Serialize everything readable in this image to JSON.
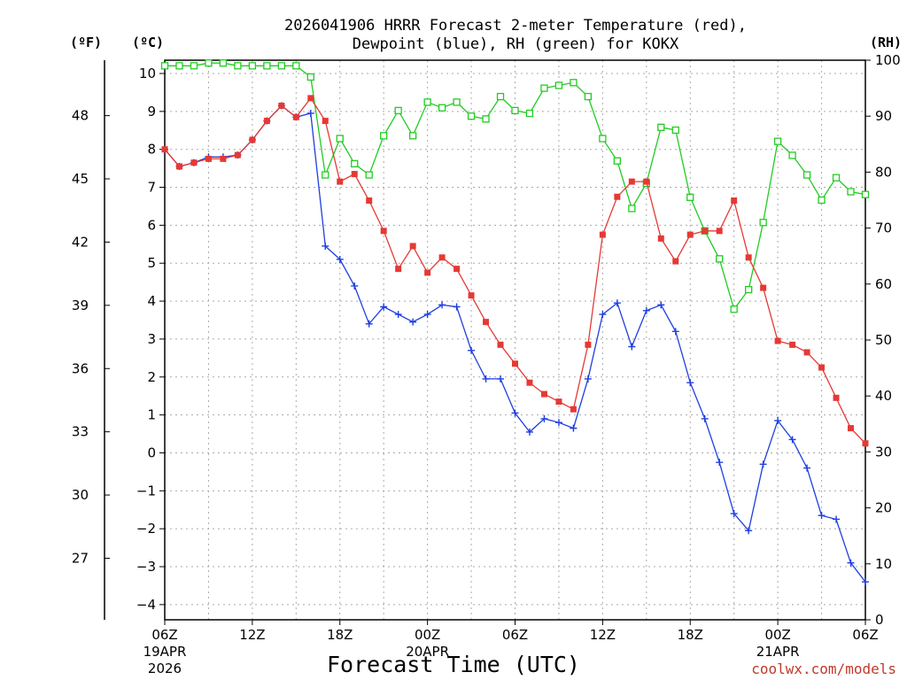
{
  "chart_data": {
    "type": "line",
    "title_line1": "2026041906 HRRR Forecast 2-meter Temperature (red),",
    "title_line2": "Dewpoint (blue), RH (green) for KOKX",
    "xlabel": "Forecast Time (UTC)",
    "credit": "coolwx.com/models",
    "left_unit_f": "(ºF)",
    "left_unit_c": "(ºC)",
    "right_unit": "(RH)",
    "x_range_hours": [
      0,
      48
    ],
    "c_range": [
      -4.4,
      10.35
    ],
    "rh_range": [
      0,
      100
    ],
    "c_ticks": [
      10,
      9,
      8,
      7,
      6,
      5,
      4,
      3,
      2,
      1,
      0,
      -1,
      -2,
      -3,
      -4
    ],
    "c_tick_labels": [
      "10",
      "9",
      "8",
      "7",
      "6",
      "5",
      "4",
      "3",
      "2",
      "1",
      "0",
      "−1",
      "−2",
      "−3",
      "−4"
    ],
    "f_ticks": [
      48,
      45,
      42,
      39,
      36,
      33,
      30,
      27
    ],
    "rh_ticks": [
      100,
      90,
      80,
      70,
      60,
      50,
      40,
      30,
      20,
      10,
      0
    ],
    "x_ticks": [
      {
        "hour": 0,
        "label": "06Z",
        "sub1": "19APR",
        "sub2": "2026"
      },
      {
        "hour": 6,
        "label": "12Z",
        "sub1": "",
        "sub2": ""
      },
      {
        "hour": 12,
        "label": "18Z",
        "sub1": "",
        "sub2": ""
      },
      {
        "hour": 18,
        "label": "00Z",
        "sub1": "20APR",
        "sub2": ""
      },
      {
        "hour": 24,
        "label": "06Z",
        "sub1": "",
        "sub2": ""
      },
      {
        "hour": 30,
        "label": "12Z",
        "sub1": "",
        "sub2": ""
      },
      {
        "hour": 36,
        "label": "18Z",
        "sub1": "",
        "sub2": ""
      },
      {
        "hour": 42,
        "label": "00Z",
        "sub1": "21APR",
        "sub2": ""
      },
      {
        "hour": 48,
        "label": "06Z",
        "sub1": "",
        "sub2": ""
      }
    ],
    "series": [
      {
        "name": "Temperature",
        "unit": "C",
        "color": "#e53935",
        "marker": "square-filled",
        "values": [
          8.0,
          7.55,
          7.65,
          7.75,
          7.75,
          7.85,
          8.25,
          8.75,
          9.15,
          8.85,
          9.35,
          8.75,
          7.15,
          7.35,
          6.65,
          5.85,
          4.85,
          5.45,
          4.75,
          5.15,
          4.85,
          4.15,
          3.45,
          2.85,
          2.35,
          1.85,
          1.55,
          1.35,
          1.15,
          2.85,
          5.75,
          6.75,
          7.15,
          7.15,
          5.65,
          5.05,
          5.75,
          5.85,
          5.85,
          6.65,
          5.15,
          4.35,
          2.95,
          2.85,
          2.65,
          2.25,
          1.45,
          0.65,
          0.25
        ]
      },
      {
        "name": "Dewpoint",
        "unit": "C",
        "color": "#1f3fe0",
        "marker": "plus",
        "values": [
          8.0,
          7.55,
          7.65,
          7.8,
          7.8,
          7.85,
          8.25,
          8.75,
          9.15,
          8.85,
          8.95,
          5.45,
          5.1,
          4.4,
          3.4,
          3.85,
          3.65,
          3.45,
          3.65,
          3.9,
          3.85,
          2.7,
          1.95,
          1.95,
          1.05,
          0.55,
          0.9,
          0.8,
          0.65,
          1.95,
          3.65,
          3.95,
          2.8,
          3.75,
          3.9,
          3.2,
          1.85,
          0.9,
          -0.25,
          -1.6,
          -2.05,
          -0.3,
          0.85,
          0.35,
          -0.4,
          -1.65,
          -1.75,
          -2.9,
          -3.4
        ]
      },
      {
        "name": "RH",
        "unit": "%",
        "color": "#22cc22",
        "marker": "square-open",
        "values": [
          99,
          99,
          99,
          99.5,
          99.5,
          99,
          99,
          99,
          99,
          99,
          97,
          79.5,
          86,
          81.5,
          79.5,
          86.5,
          91,
          86.5,
          92.5,
          91.5,
          92.5,
          90,
          89.5,
          93.5,
          91,
          90.5,
          95,
          95.5,
          96,
          93.5,
          86,
          82,
          73.5,
          78,
          88,
          87.5,
          75.5,
          69.5,
          64.5,
          55.5,
          59,
          71,
          85.5,
          83,
          79.5,
          75,
          79,
          76.5,
          76
        ]
      }
    ]
  }
}
